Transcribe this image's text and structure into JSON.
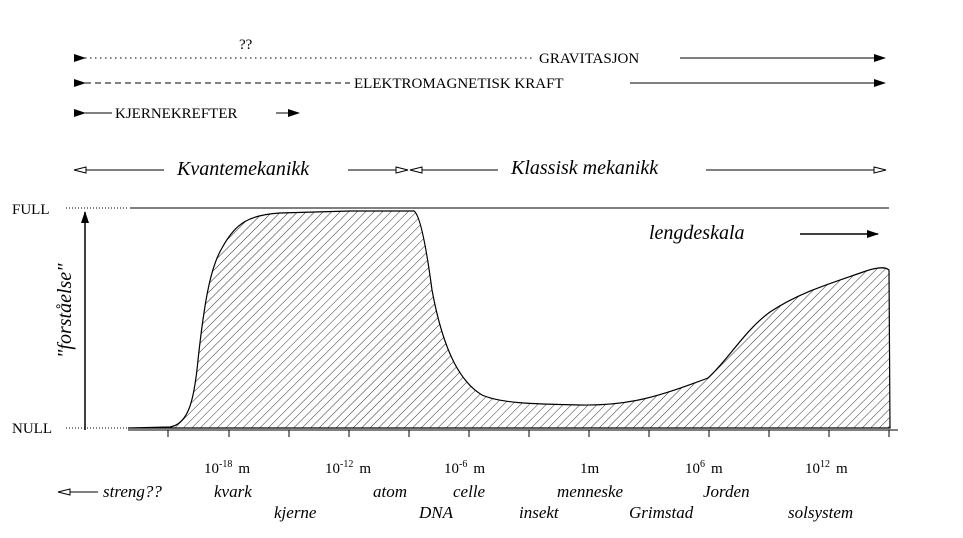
{
  "forces": {
    "gravity_question": "??",
    "gravity": "GRAVITASJON",
    "em": "ELEKTROMAGNETISK KRAFT",
    "nuclear": "KJERNEKREFTER"
  },
  "regimes": {
    "quantum": "Kvantemekanikk",
    "classical": "Klassisk mekanikk"
  },
  "axes": {
    "y_top": "FULL",
    "y_bottom": "NULL",
    "y_label": "\"forståelse\"",
    "x_label": "lengdeskala"
  },
  "scale_ticks": [
    {
      "base": "10",
      "exp": "-18",
      "unit": "m"
    },
    {
      "base": "10",
      "exp": "-12",
      "unit": "m"
    },
    {
      "base": "10",
      "exp": "-6",
      "unit": "m"
    },
    {
      "base": "1m",
      "exp": "",
      "unit": ""
    },
    {
      "base": "10",
      "exp": "6",
      "unit": "m"
    },
    {
      "base": "10",
      "exp": "12",
      "unit": "m"
    }
  ],
  "objects_row1": {
    "string": "streng??",
    "quark": "kvark",
    "atom": "atom",
    "cell": "celle",
    "human": "menneske",
    "earth": "Jorden"
  },
  "objects_row2": {
    "nucleus": "kjerne",
    "dna": "DNA",
    "insect": "insekt",
    "grimstad": "Grimstad",
    "solar_system": "solsystem"
  }
}
